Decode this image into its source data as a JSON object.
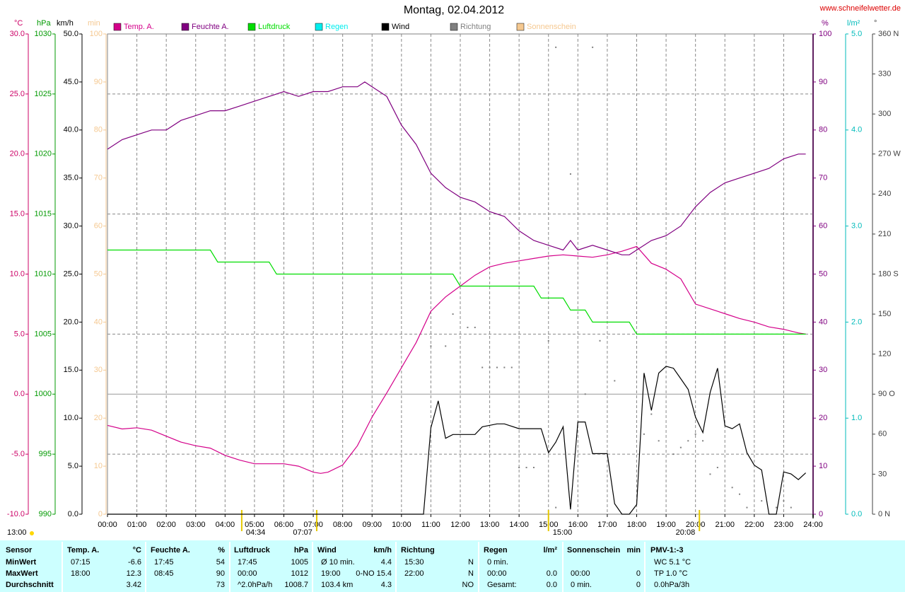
{
  "chart_data": {
    "type": "line",
    "title": "Montag, 02.04.2012",
    "site": "www.schneifelwetter.de",
    "xlim": [
      0,
      24
    ],
    "xticks": [
      {
        "value": 0,
        "label": "00:00"
      },
      {
        "value": 1,
        "label": "01:00"
      },
      {
        "value": 2,
        "label": "02:00"
      },
      {
        "value": 3,
        "label": "03:00"
      },
      {
        "value": 4,
        "label": "04:00"
      },
      {
        "value": 5,
        "label": "05:00"
      },
      {
        "value": 6,
        "label": "06:00"
      },
      {
        "value": 7,
        "label": "07:00"
      },
      {
        "value": 8,
        "label": "08:00"
      },
      {
        "value": 9,
        "label": "09:00"
      },
      {
        "value": 10,
        "label": "10:00"
      },
      {
        "value": 11,
        "label": "11:00"
      },
      {
        "value": 12,
        "label": "12:00"
      },
      {
        "value": 13,
        "label": "13:00"
      },
      {
        "value": 14,
        "label": "14:00"
      },
      {
        "value": 15,
        "label": "15:00"
      },
      {
        "value": 16,
        "label": "16:00"
      },
      {
        "value": 17,
        "label": "17:00"
      },
      {
        "value": 18,
        "label": "18:00"
      },
      {
        "value": 19,
        "label": "19:00"
      },
      {
        "value": 20,
        "label": "20:00"
      },
      {
        "value": 21,
        "label": "21:00"
      },
      {
        "value": 22,
        "label": "22:00"
      },
      {
        "value": 23,
        "label": "23:00"
      },
      {
        "value": 24,
        "label": "24:00"
      }
    ],
    "grid": true,
    "axes": [
      {
        "unit": "°C",
        "color": "#cc0066",
        "lim": [
          -10,
          30
        ],
        "ticks": [
          {
            "value": 30,
            "label": "30.0"
          },
          {
            "value": 25,
            "label": "25.0"
          },
          {
            "value": 20,
            "label": "20.0"
          },
          {
            "value": 15,
            "label": "15.0"
          },
          {
            "value": 10,
            "label": "10.0"
          },
          {
            "value": 5,
            "label": "5.0"
          },
          {
            "value": 0,
            "label": "0.0"
          },
          {
            "value": -5,
            "label": "-5.0"
          },
          {
            "value": -10,
            "label": "-10.0"
          }
        ]
      },
      {
        "unit": "hPa",
        "color": "#009900",
        "lim": [
          990,
          1030
        ],
        "ticks": [
          1030,
          1025,
          1020,
          1015,
          1010,
          1005,
          1000,
          995,
          990
        ]
      },
      {
        "unit": "km/h",
        "color": "#000000",
        "lim": [
          0,
          50
        ],
        "ticks": [
          {
            "value": 50,
            "label": "50.0"
          },
          {
            "value": 45,
            "label": "45.0"
          },
          {
            "value": 40,
            "label": "40.0"
          },
          {
            "value": 35,
            "label": "35.0"
          },
          {
            "value": 30,
            "label": "30.0"
          },
          {
            "value": 25,
            "label": "25.0"
          },
          {
            "value": 20,
            "label": "20.0"
          },
          {
            "value": 15,
            "label": "15.0"
          },
          {
            "value": 10,
            "label": "10.0"
          },
          {
            "value": 5,
            "label": "5.0"
          },
          {
            "value": 0,
            "label": "0.0"
          }
        ]
      },
      {
        "unit": "min",
        "color": "#f5c890",
        "lim": [
          0,
          100
        ],
        "ticks": [
          100,
          90,
          80,
          70,
          60,
          50,
          40,
          30,
          20,
          10,
          0
        ]
      },
      {
        "unit": "%",
        "color": "#800080",
        "lim": [
          0,
          100
        ],
        "ticks": [
          100,
          90,
          80,
          70,
          60,
          50,
          40,
          30,
          20,
          10,
          0
        ]
      },
      {
        "unit": "l/m²",
        "color": "#00bbbb",
        "lim": [
          0,
          5
        ],
        "ticks": [
          {
            "value": 5,
            "label": "5.0"
          },
          {
            "value": 4,
            "label": "4.0"
          },
          {
            "value": 3,
            "label": "3.0"
          },
          {
            "value": 2,
            "label": "2.0"
          },
          {
            "value": 1,
            "label": "1.0"
          },
          {
            "value": 0,
            "label": "0.0"
          }
        ]
      },
      {
        "unit": "°",
        "color": "#404040",
        "lim": [
          0,
          360
        ],
        "ticks": [
          {
            "value": 360,
            "label": "360 N"
          },
          330,
          300,
          {
            "value": 270,
            "label": "270 W"
          },
          240,
          210,
          {
            "value": 180,
            "label": "180 S"
          },
          150,
          120,
          {
            "value": 90,
            "label": "90 O"
          },
          60,
          30,
          {
            "value": 0,
            "label": "0 N"
          }
        ]
      }
    ],
    "series": [
      {
        "name": "Temp. A.",
        "color": "#d4008a",
        "axis": 0,
        "x": [
          0,
          0.5,
          1,
          1.5,
          2,
          2.5,
          3,
          3.5,
          4,
          4.5,
          5,
          5.5,
          6,
          6.5,
          7,
          7.25,
          7.5,
          8,
          8.5,
          9,
          9.5,
          10,
          10.5,
          11,
          11.5,
          12,
          12.5,
          13,
          13.5,
          14,
          14.5,
          15,
          15.5,
          16,
          16.5,
          17,
          17.5,
          18,
          18.5,
          19,
          19.5,
          20,
          20.5,
          21,
          21.5,
          22,
          22.5,
          23,
          23.5,
          23.75
        ],
        "values": [
          -2.6,
          -2.9,
          -2.8,
          -3.0,
          -3.5,
          -4.0,
          -4.3,
          -4.5,
          -5.1,
          -5.5,
          -5.8,
          -5.8,
          -5.8,
          -6.0,
          -6.5,
          -6.6,
          -6.5,
          -5.9,
          -4.3,
          -1.9,
          0.1,
          2.2,
          4.3,
          6.9,
          8.1,
          9.0,
          9.9,
          10.6,
          10.9,
          11.1,
          11.3,
          11.5,
          11.6,
          11.5,
          11.4,
          11.6,
          11.9,
          12.3,
          10.9,
          10.4,
          9.6,
          7.5,
          7.1,
          6.7,
          6.3,
          6.0,
          5.6,
          5.4,
          5.1,
          5.0
        ]
      },
      {
        "name": "Feuchte A.",
        "color": "#800080",
        "axis": 4,
        "x": [
          0,
          0.5,
          1,
          1.5,
          2,
          2.5,
          3,
          3.5,
          4,
          4.5,
          5,
          5.5,
          6,
          6.5,
          7,
          7.5,
          8,
          8.5,
          8.75,
          9,
          9.5,
          10,
          10.5,
          11,
          11.5,
          12,
          12.5,
          13,
          13.5,
          14,
          14.5,
          15,
          15.5,
          15.75,
          16,
          16.5,
          17,
          17.5,
          17.75,
          18,
          18.5,
          19,
          19.5,
          20,
          20.5,
          21,
          21.5,
          22,
          22.5,
          23,
          23.5,
          23.75
        ],
        "values": [
          76,
          78,
          79,
          80,
          80,
          82,
          83,
          84,
          84,
          85,
          86,
          87,
          88,
          87,
          88,
          88,
          89,
          89,
          90,
          89,
          87,
          81,
          77,
          71,
          68,
          66,
          65,
          63,
          62,
          59,
          57,
          56,
          55,
          57,
          55,
          56,
          55,
          54,
          54,
          55,
          57,
          58,
          60,
          64,
          67,
          69,
          70,
          71,
          72,
          74,
          75,
          75
        ]
      },
      {
        "name": "Luftdruck",
        "color": "#00dd00",
        "axis": 1,
        "x": [
          0,
          3.5,
          3.75,
          5.5,
          5.75,
          11.75,
          12,
          14.5,
          14.75,
          15.5,
          15.75,
          16.25,
          16.5,
          17.75,
          18,
          23.75
        ],
        "values": [
          1012,
          1012,
          1011,
          1011,
          1010,
          1010,
          1009,
          1009,
          1008,
          1008,
          1007,
          1007,
          1006,
          1006,
          1005,
          1005
        ]
      },
      {
        "name": "Regen",
        "color": "#00eeee",
        "axis": 5
      },
      {
        "name": "Wind",
        "color": "#000000",
        "axis": 2,
        "x": [
          0,
          10.75,
          11,
          11.25,
          11.5,
          11.75,
          12.5,
          12.75,
          13.25,
          13.5,
          14,
          14.75,
          15,
          15.25,
          15.5,
          15.75,
          16,
          16.25,
          16.5,
          17,
          17.25,
          17.5,
          17.75,
          18,
          18.25,
          18.5,
          18.75,
          19,
          19.25,
          19.5,
          19.75,
          20,
          20.25,
          20.5,
          20.75,
          21,
          21.25,
          21.5,
          21.75,
          22,
          22.25,
          22.5,
          22.75,
          23,
          23.25,
          23.5,
          23.75
        ],
        "values": [
          0,
          0,
          9.0,
          11.8,
          7.9,
          8.3,
          8.3,
          9.1,
          9.4,
          9.4,
          8.9,
          8.9,
          6.4,
          7.5,
          9.1,
          0.5,
          9.6,
          9.6,
          6.3,
          6.3,
          1.1,
          0,
          0,
          1.0,
          14.7,
          10.8,
          14.7,
          15.4,
          15.2,
          14.1,
          13.0,
          10.1,
          8.5,
          12.7,
          15.2,
          9.2,
          8.9,
          9.4,
          6.4,
          5.1,
          4.6,
          0,
          0,
          4.4,
          4.2,
          3.6,
          4.3
        ]
      },
      {
        "name": "Richtung",
        "color": "#808080",
        "axis": 6,
        "style": "dots",
        "x": [
          11,
          11.5,
          11.75,
          12.25,
          12.5,
          12.75,
          13,
          13.25,
          13.5,
          13.75,
          14,
          14.25,
          14.5,
          15,
          15.25,
          15.25,
          15.75,
          16.25,
          16.5,
          16.75,
          17.25,
          18.25,
          18.5,
          18.75,
          19.25,
          19.5,
          19.75,
          20,
          20.25,
          20.5,
          20.75,
          21.25,
          21.5,
          21.75,
          22.25,
          22.75,
          23,
          23.25
        ],
        "values": [
          126,
          126,
          150,
          140,
          140,
          110,
          110,
          110,
          110,
          110,
          35,
          35,
          35,
          130,
          350,
          5,
          255,
          90,
          350,
          130,
          100,
          60,
          75,
          55,
          45,
          50,
          55,
          60,
          55,
          30,
          35,
          20,
          15,
          5,
          10,
          5,
          10,
          5
        ]
      },
      {
        "name": "Sonnenschein",
        "color": "#f5c890",
        "axis": 3
      }
    ],
    "annotations": [
      {
        "text": "13:00"
      },
      {
        "x": 4.5667,
        "text": "04:34"
      },
      {
        "x": 7.1167,
        "text": "07:07"
      },
      {
        "x": 15,
        "text": "15:00"
      },
      {
        "x": 20.1333,
        "text": "20:08"
      }
    ]
  },
  "table": {
    "columns": [
      {
        "header": "Sensor",
        "cells": [
          {
            "left": "MinWert"
          },
          {
            "left": "MaxWert"
          },
          {
            "left": "Durchschnitt"
          }
        ]
      },
      {
        "header": "Temp. A.",
        "unit": "°C",
        "cells": [
          {
            "left": "07:15",
            "right": "-6.6"
          },
          {
            "left": "18:00",
            "right": "12.3"
          },
          {
            "right": "3.42"
          }
        ]
      },
      {
        "header": "Feuchte A.",
        "unit": "%",
        "cells": [
          {
            "left": "17:45",
            "right": "54"
          },
          {
            "left": "08:45",
            "right": "90"
          },
          {
            "right": "73"
          }
        ]
      },
      {
        "header": "Luftdruck",
        "unit": "hPa",
        "cells": [
          {
            "left": "17:45",
            "right": "1005"
          },
          {
            "left": "00:00",
            "right": "1012"
          },
          {
            "left": "^2.0hPa/h",
            "right": "1008.7"
          }
        ]
      },
      {
        "header": "Wind",
        "unit": "km/h",
        "cells": [
          {
            "left": "Ø 10 min.",
            "right": "4.4"
          },
          {
            "left": "19:00",
            "right": "0-NO 15.4"
          },
          {
            "left": "103.4 km",
            "right": "4.3"
          }
        ]
      },
      {
        "header": "Richtung",
        "cells": [
          {
            "left": "15:30",
            "right": "N"
          },
          {
            "left": "22:00",
            "right": "N"
          },
          {
            "right": "NO"
          }
        ]
      },
      {
        "header": "Regen",
        "unit": "l/m²",
        "cells": [
          {
            "left": "0 min."
          },
          {
            "left": "00:00",
            "right": "0.0"
          },
          {
            "left": "Gesamt:",
            "right": "0.0"
          }
        ]
      },
      {
        "header": "Sonnenschein",
        "unit": "min",
        "cells": [
          {},
          {
            "left": "00:00",
            "right": "0"
          },
          {
            "left": "0 min.",
            "right": "0"
          }
        ]
      },
      {
        "header": "PMV-1:-3",
        "cells": [
          {
            "left": "WC 5.1 °C"
          },
          {
            "left": "TP 1.0 °C"
          },
          {
            "left": "0.0hPa/3h"
          }
        ]
      }
    ]
  }
}
